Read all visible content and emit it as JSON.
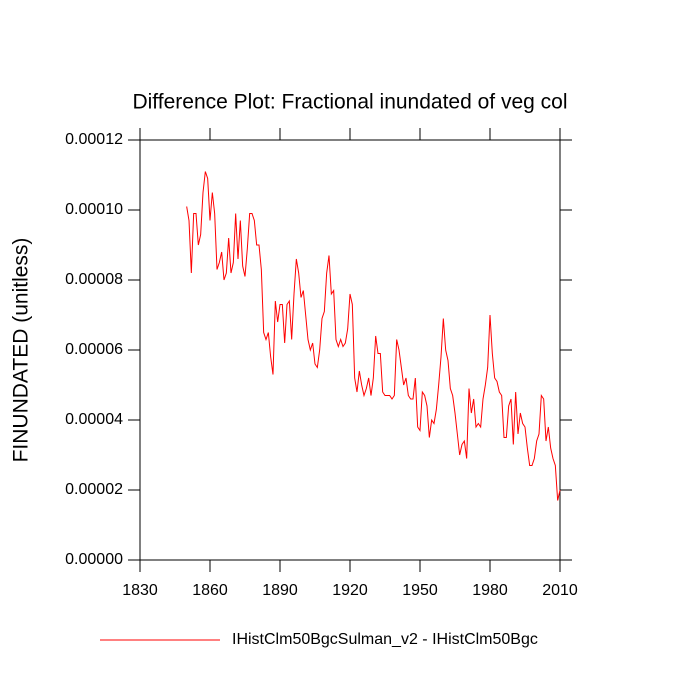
{
  "chart_data": {
    "type": "line",
    "title": "Difference Plot: Fractional inundated of veg col",
    "y_label": "FINUNDATED  (unitless)",
    "x": [
      1850,
      1851,
      1852,
      1853,
      1854,
      1855,
      1856,
      1857,
      1858,
      1859,
      1860,
      1861,
      1862,
      1863,
      1864,
      1865,
      1866,
      1867,
      1868,
      1869,
      1870,
      1871,
      1872,
      1873,
      1874,
      1875,
      1876,
      1877,
      1878,
      1879,
      1880,
      1881,
      1882,
      1883,
      1884,
      1885,
      1886,
      1887,
      1888,
      1889,
      1890,
      1891,
      1892,
      1893,
      1894,
      1895,
      1896,
      1897,
      1898,
      1899,
      1900,
      1901,
      1902,
      1903,
      1904,
      1905,
      1906,
      1907,
      1908,
      1909,
      1910,
      1911,
      1912,
      1913,
      1914,
      1915,
      1916,
      1917,
      1918,
      1919,
      1920,
      1921,
      1922,
      1923,
      1924,
      1925,
      1926,
      1927,
      1928,
      1929,
      1930,
      1931,
      1932,
      1933,
      1934,
      1935,
      1936,
      1937,
      1938,
      1939,
      1940,
      1941,
      1942,
      1943,
      1944,
      1945,
      1946,
      1947,
      1948,
      1949,
      1950,
      1951,
      1952,
      1953,
      1954,
      1955,
      1956,
      1957,
      1958,
      1959,
      1960,
      1961,
      1962,
      1963,
      1964,
      1965,
      1966,
      1967,
      1968,
      1969,
      1970,
      1971,
      1972,
      1973,
      1974,
      1975,
      1976,
      1977,
      1978,
      1979,
      1980,
      1981,
      1982,
      1983,
      1984,
      1985,
      1986,
      1987,
      1988,
      1989,
      1990,
      1991,
      1992,
      1993,
      1994,
      1995,
      1996,
      1997,
      1998,
      1999,
      2000,
      2001,
      2002,
      2003,
      2004,
      2005,
      2006,
      2007,
      2008,
      2009,
      2010
    ],
    "series": [
      {
        "name": "IHistClm50BgcSulman_v2 - IHistClm50Bgc",
        "color": "#ff0000",
        "values": [
          0.000101,
          9.7e-05,
          8.2e-05,
          9.9e-05,
          9.9e-05,
          9e-05,
          9.3e-05,
          0.000105,
          0.000111,
          0.000109,
          9.7e-05,
          0.000105,
          9.9e-05,
          8.3e-05,
          8.5e-05,
          8.8e-05,
          8e-05,
          8.2e-05,
          9.2e-05,
          8.2e-05,
          8.5e-05,
          9.9e-05,
          8.6e-05,
          9.7e-05,
          8.4e-05,
          8.1e-05,
          8.9e-05,
          9.9e-05,
          9.9e-05,
          9.7e-05,
          9e-05,
          9e-05,
          8.3e-05,
          6.5e-05,
          6.3e-05,
          6.5e-05,
          5.8e-05,
          5.3e-05,
          7.4e-05,
          6.8e-05,
          7.3e-05,
          7.3e-05,
          6.2e-05,
          7.3e-05,
          7.4e-05,
          6.3e-05,
          7.6e-05,
          8.6e-05,
          8.2e-05,
          7.5e-05,
          7.7e-05,
          7e-05,
          6.3e-05,
          6e-05,
          6.2e-05,
          5.6e-05,
          5.5e-05,
          6e-05,
          6.9e-05,
          7.1e-05,
          8.2e-05,
          8.7e-05,
          7.6e-05,
          7.7e-05,
          6.3e-05,
          6.1e-05,
          6.3e-05,
          6.1e-05,
          6.2e-05,
          6.6e-05,
          7.6e-05,
          7.3e-05,
          5.2e-05,
          4.8e-05,
          5.4e-05,
          5e-05,
          4.7e-05,
          4.9e-05,
          5.2e-05,
          4.7e-05,
          5.2e-05,
          6.4e-05,
          5.9e-05,
          5.9e-05,
          4.8e-05,
          4.7e-05,
          4.7e-05,
          4.7e-05,
          4.6e-05,
          4.7e-05,
          6.3e-05,
          6e-05,
          5.5e-05,
          5e-05,
          5.2e-05,
          4.7e-05,
          4.6e-05,
          4.6e-05,
          5.2e-05,
          3.8e-05,
          3.7e-05,
          4.8e-05,
          4.7e-05,
          4.4e-05,
          3.5e-05,
          4e-05,
          3.9e-05,
          4.3e-05,
          5e-05,
          5.8e-05,
          6.9e-05,
          6e-05,
          5.7e-05,
          4.9e-05,
          4.7e-05,
          4.2e-05,
          3.6e-05,
          3e-05,
          3.3e-05,
          3.4e-05,
          2.9e-05,
          4.9e-05,
          4.2e-05,
          4.6e-05,
          3.8e-05,
          3.9e-05,
          3.8e-05,
          4.6e-05,
          5e-05,
          5.5e-05,
          7e-05,
          5.9e-05,
          5.2e-05,
          5.1e-05,
          4.8e-05,
          4.7e-05,
          3.5e-05,
          3.5e-05,
          4.4e-05,
          4.6e-05,
          3.3e-05,
          4.8e-05,
          3.6e-05,
          4.2e-05,
          3.9e-05,
          3.8e-05,
          3.2e-05,
          2.7e-05,
          2.7e-05,
          2.9e-05,
          3.4e-05,
          3.6e-05,
          4.7e-05,
          4.6e-05,
          3.4e-05,
          3.8e-05,
          3.2e-05,
          2.9e-05,
          2.7e-05,
          1.7e-05,
          2e-05
        ]
      }
    ],
    "xlim": [
      1830,
      2010
    ],
    "xticks": [
      1830,
      1860,
      1890,
      1920,
      1950,
      1980,
      2010
    ],
    "ylim": [
      0,
      0.00012
    ],
    "yticks": [
      {
        "value": 0,
        "label": "0.00000"
      },
      {
        "value": 2e-05,
        "label": "0.00002"
      },
      {
        "value": 4e-05,
        "label": "0.00004"
      },
      {
        "value": 6e-05,
        "label": "0.00006"
      },
      {
        "value": 8e-05,
        "label": "0.00008"
      },
      {
        "value": 0.0001,
        "label": "0.00010"
      },
      {
        "value": 0.00012,
        "label": "0.00012"
      }
    ],
    "grid": false
  }
}
